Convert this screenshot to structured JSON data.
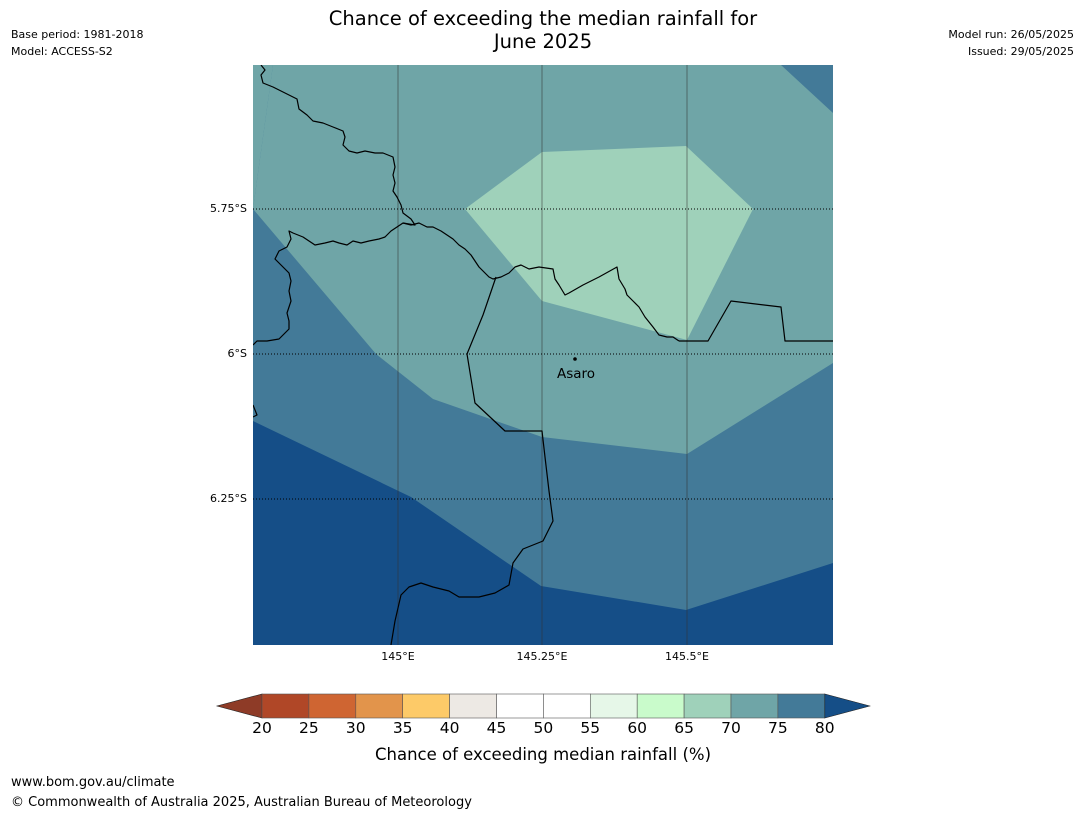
{
  "header": {
    "title_line1": "Chance of exceeding the median rainfall for",
    "title_line2": "June 2025",
    "base_period": "Base period: 1981-2018",
    "model": "Model: ACCESS-S2",
    "model_run": "Model run: 26/05/2025",
    "issued": "Issued: 29/05/2025"
  },
  "map": {
    "place_label": "Asaro",
    "lat_labels": [
      "5.75°S",
      "6°S",
      "6.25°S"
    ],
    "lon_labels": [
      "145°E",
      "145.25°E",
      "145.5°E"
    ],
    "colors": {
      "band_65_70": "#9fd1ba",
      "band_70_75": "#6fa5a7",
      "band_75_80": "#437a98",
      "band_80_plus": "#154e87"
    }
  },
  "colorbar": {
    "label": "Chance of exceeding median rainfall (%)",
    "ticks": [
      "20",
      "25",
      "30",
      "35",
      "40",
      "45",
      "50",
      "55",
      "60",
      "65",
      "70",
      "75",
      "80"
    ],
    "colors": [
      "#b04727",
      "#cf6532",
      "#e2944b",
      "#fdca68",
      "#ede9e4",
      "#ffffff",
      "#ffffff",
      "#e6f7e8",
      "#c9fbcb",
      "#9fd1ba",
      "#6fa5a7",
      "#437a98"
    ],
    "under_color": "#8e3b27",
    "over_color": "#154e87"
  },
  "footer": {
    "url": "www.bom.gov.au/climate",
    "copyright": "© Commonwealth of Australia 2025, Australian Bureau of Meteorology"
  }
}
